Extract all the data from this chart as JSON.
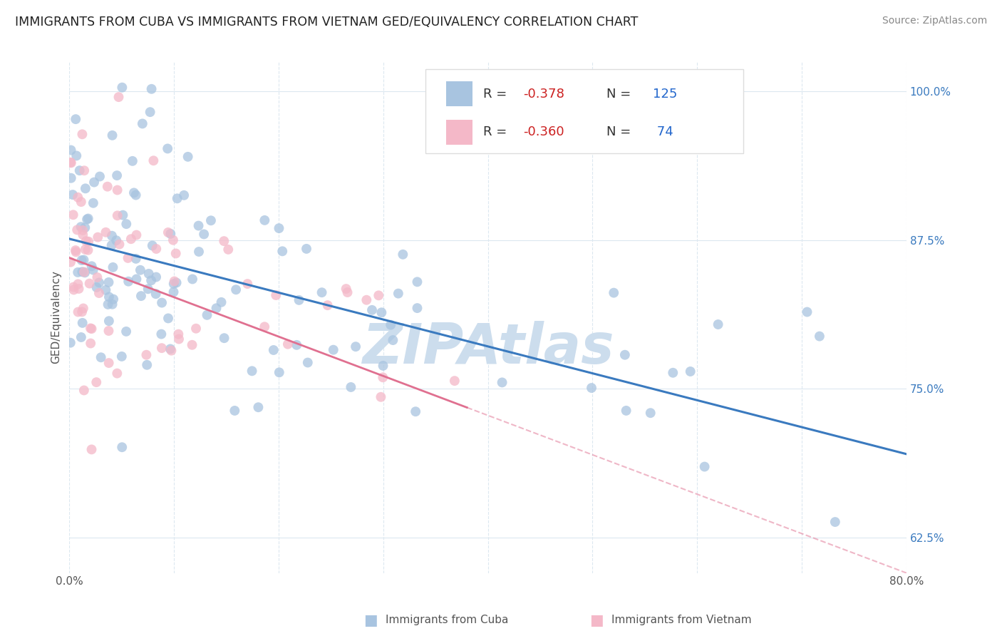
{
  "title": "IMMIGRANTS FROM CUBA VS IMMIGRANTS FROM VIETNAM GED/EQUIVALENCY CORRELATION CHART",
  "source": "Source: ZipAtlas.com",
  "xlabel_bottom": "Immigrants from Cuba",
  "xlabel_right": "Immigrants from Vietnam",
  "ylabel": "GED/Equivalency",
  "xmin": 0.0,
  "xmax": 0.8,
  "ymin": 0.595,
  "ymax": 1.025,
  "yticks": [
    0.625,
    0.75,
    0.875,
    1.0
  ],
  "ytick_labels": [
    "62.5%",
    "75.0%",
    "87.5%",
    "100.0%"
  ],
  "xticks": [
    0.0,
    0.1,
    0.2,
    0.3,
    0.4,
    0.5,
    0.6,
    0.7,
    0.8
  ],
  "xtick_labels": [
    "0.0%",
    "",
    "",
    "",
    "",
    "",
    "",
    "",
    "80.0%"
  ],
  "cuba_color": "#a8c4e0",
  "vietnam_color": "#f4b8c8",
  "cuba_line_color": "#3a7abf",
  "vietnam_line_color": "#e07090",
  "cuba_R": -0.378,
  "cuba_N": 125,
  "vietnam_R": -0.36,
  "vietnam_N": 74,
  "watermark": "ZIPAtlas",
  "watermark_color": "#ccdded",
  "background_color": "#ffffff",
  "grid_color": "#dce8f0",
  "legend_box_color": "#f5f5f5",
  "legend_edge_color": "#dddddd",
  "R_text_color": "#cc2222",
  "N_text_color": "#2266cc",
  "title_color": "#222222",
  "source_color": "#888888",
  "ylabel_color": "#555555",
  "tick_color": "#555555",
  "cuba_trend_y0": 0.876,
  "cuba_trend_y1": 0.695,
  "vietnam_trend_y0": 0.86,
  "vietnam_trend_y1": 0.595
}
